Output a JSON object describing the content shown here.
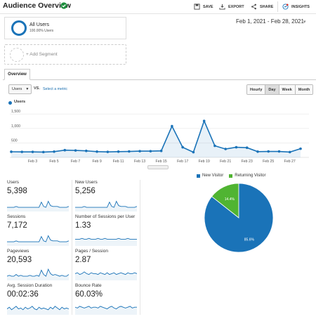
{
  "header": {
    "title": "Audience Overview",
    "toolbar": {
      "save": "SAVE",
      "export": "EXPORT",
      "share": "SHARE",
      "insights": "INSIGHTS"
    }
  },
  "segments": {
    "active": {
      "name": "All Users",
      "sub": "100.00% Users"
    },
    "add_label": "+ Add Segment"
  },
  "date_range": "Feb 1, 2021 - Feb 28, 2021",
  "tabs": [
    {
      "label": "Overview"
    }
  ],
  "controls": {
    "metric": "Users",
    "vs": "VS.",
    "select_metric": "Select a metric",
    "granularity": [
      "Hourly",
      "Day",
      "Week",
      "Month"
    ],
    "granularity_active": "Day"
  },
  "colors": {
    "accent": "#1a73b8",
    "secondary": "#50b432",
    "link": "#1a6fb0"
  },
  "chart_data": [
    {
      "type": "line",
      "series": [
        {
          "name": "Users",
          "x": [
            1,
            2,
            3,
            4,
            5,
            6,
            7,
            8,
            9,
            10,
            11,
            12,
            13,
            14,
            15,
            16,
            17,
            18,
            19,
            20,
            21,
            22,
            23,
            24,
            25,
            26,
            27,
            28
          ],
          "values": [
            195,
            190,
            190,
            185,
            200,
            250,
            240,
            225,
            200,
            190,
            200,
            205,
            215,
            215,
            225,
            1080,
            350,
            180,
            1260,
            400,
            290,
            350,
            335,
            200,
            205,
            205,
            185,
            300
          ]
        }
      ],
      "y_ticks": [
        "500",
        "1,000",
        "1,500"
      ],
      "x_ticks": [
        "Feb 3",
        "Feb 5",
        "Feb 7",
        "Feb 9",
        "Feb 11",
        "Feb 13",
        "Feb 15",
        "Feb 17",
        "Feb 19",
        "Feb 21",
        "Feb 23",
        "Feb 25",
        "Feb 27"
      ],
      "ylim": [
        0,
        1700
      ],
      "grid": true
    },
    {
      "type": "pie",
      "series": [
        {
          "name": "New Visitor",
          "value": 85.6,
          "label": "85.6%",
          "color": "#1a73b8"
        },
        {
          "name": "Returning Visitor",
          "value": 14.4,
          "label": "14.4%",
          "color": "#50b432"
        }
      ],
      "legend": "top"
    }
  ],
  "metrics": [
    {
      "label": "Users",
      "value": "5,398",
      "spark": [
        4,
        4,
        4,
        4,
        5,
        4,
        4,
        4,
        4,
        4,
        4,
        4,
        4,
        4,
        4,
        10,
        5,
        4,
        11,
        6,
        5,
        5,
        5,
        4,
        4,
        4,
        4,
        5
      ]
    },
    {
      "label": "New Users",
      "value": "5,256",
      "spark": [
        4,
        4,
        4,
        4,
        5,
        4,
        4,
        4,
        4,
        4,
        4,
        4,
        4,
        4,
        4,
        10,
        5,
        4,
        11,
        6,
        5,
        5,
        5,
        4,
        4,
        4,
        4,
        5
      ]
    },
    {
      "label": "Sessions",
      "value": "7,172",
      "spark": [
        4,
        4,
        4,
        4,
        5,
        4,
        4,
        4,
        4,
        4,
        4,
        4,
        4,
        4,
        4,
        10,
        5,
        4,
        11,
        6,
        5,
        5,
        5,
        4,
        4,
        4,
        4,
        5
      ]
    },
    {
      "label": "Number of Sessions per User",
      "value": "1.33",
      "spark": [
        7,
        7,
        7,
        8,
        7,
        7,
        8,
        7,
        7,
        7,
        8,
        7,
        7,
        8,
        7,
        7,
        7,
        7,
        7,
        8,
        7,
        7,
        7,
        8,
        7,
        7,
        7,
        7
      ]
    },
    {
      "label": "Pageviews",
      "value": "20,593",
      "spark": [
        4,
        5,
        4,
        4,
        6,
        4,
        5,
        4,
        4,
        4,
        5,
        4,
        4,
        5,
        4,
        11,
        6,
        4,
        12,
        7,
        5,
        6,
        5,
        4,
        5,
        4,
        4,
        6
      ]
    },
    {
      "label": "Pages / Session",
      "value": "2.87",
      "spark": [
        7,
        8,
        6,
        7,
        9,
        7,
        6,
        8,
        7,
        7,
        6,
        8,
        7,
        6,
        8,
        6,
        7,
        8,
        6,
        7,
        8,
        7,
        6,
        8,
        7,
        7,
        8,
        7
      ]
    },
    {
      "label": "Avg. Session Duration",
      "value": "00:02:36",
      "spark": [
        6,
        8,
        5,
        7,
        9,
        6,
        7,
        5,
        8,
        6,
        7,
        9,
        6,
        5,
        8,
        6,
        7,
        6,
        5,
        8,
        6,
        9,
        7,
        5,
        8,
        6,
        7,
        6
      ]
    },
    {
      "label": "Bounce Rate",
      "value": "60.03%",
      "spark": [
        8,
        7,
        9,
        8,
        7,
        8,
        9,
        7,
        8,
        8,
        7,
        9,
        8,
        7,
        6,
        8,
        9,
        7,
        6,
        8,
        9,
        8,
        7,
        8,
        9,
        7,
        8,
        8
      ]
    }
  ]
}
